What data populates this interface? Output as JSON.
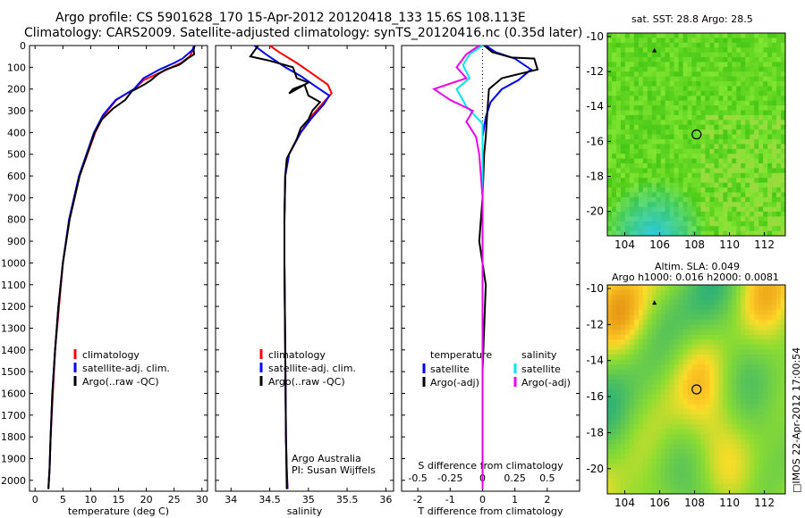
{
  "titles": {
    "line1": "Argo profile: CS 5901628_170 15-Apr-2012 20120418_133 15.6S 108.113E",
    "line2": "Climatology: CARS2009. Satellite-adjusted climatology: synTS_20120416.nc (0.35d later)"
  },
  "colors": {
    "climatology": "#ff0000",
    "satellite": "#0000ff",
    "argo": "#000000",
    "sal_satellite": "#00e5ee",
    "sal_argo": "#ee00ee"
  },
  "chart_data": [
    {
      "type": "line",
      "id": "temperature",
      "xlabel": "temperature (deg C)",
      "ylabel": "",
      "xlim": [
        -1,
        31
      ],
      "ylim": [
        2050,
        0
      ],
      "xticks": [
        0,
        5,
        10,
        15,
        20,
        25,
        30
      ],
      "yticks": [
        0,
        100,
        200,
        300,
        400,
        500,
        600,
        700,
        800,
        900,
        1000,
        1100,
        1200,
        1300,
        1400,
        1500,
        1600,
        1700,
        1800,
        1900,
        2000
      ],
      "legend": {
        "position": "lower-middle",
        "entries": [
          "climatology",
          "satellite-adj. clim.",
          "Argo(..raw -QC)"
        ]
      },
      "series": [
        {
          "name": "climatology",
          "color": "#ff0000",
          "x": [
            28.6,
            28.4,
            27.8,
            26.2,
            24.6,
            22.0,
            19.5,
            17.8,
            14.6,
            12.4,
            10.8,
            8.0,
            6.2,
            5.0,
            4.3,
            3.6,
            3.2,
            2.8,
            2.6,
            2.4
          ],
          "y": [
            0,
            20,
            50,
            80,
            100,
            130,
            160,
            200,
            250,
            320,
            400,
            600,
            800,
            1000,
            1200,
            1400,
            1600,
            1800,
            1950,
            2040
          ]
        },
        {
          "name": "satellite-adj. clim.",
          "color": "#0000ff",
          "x": [
            28.6,
            28.3,
            26.5,
            25.0,
            22.4,
            19.5,
            17.8,
            14.5,
            12.2,
            10.6,
            7.9,
            6.1,
            5.0,
            4.2,
            3.6,
            3.1,
            2.8,
            2.6,
            2.4
          ],
          "y": [
            0,
            20,
            60,
            80,
            110,
            150,
            200,
            250,
            320,
            400,
            600,
            800,
            1000,
            1200,
            1400,
            1600,
            1800,
            1950,
            2040
          ]
        },
        {
          "name": "Argo(..raw -QC)",
          "color": "#000000",
          "x": [
            28.7,
            28.5,
            28.6,
            27.4,
            26.4,
            25.8,
            23.5,
            22.2,
            20.8,
            19.6,
            17.4,
            16.2,
            14.0,
            12.0,
            10.7,
            8.0,
            6.2,
            5.0,
            4.2,
            3.6,
            3.1,
            2.8,
            2.6,
            2.4
          ],
          "y": [
            0,
            20,
            40,
            60,
            80,
            90,
            110,
            130,
            160,
            180,
            210,
            250,
            290,
            340,
            400,
            600,
            800,
            1000,
            1200,
            1400,
            1600,
            1800,
            1950,
            2040
          ]
        }
      ]
    },
    {
      "type": "line",
      "id": "salinity",
      "xlabel": "salinity",
      "ylabel": "",
      "xlim": [
        33.8,
        36.1
      ],
      "ylim": [
        2050,
        0
      ],
      "xticks": [
        34,
        34.5,
        35,
        35.5,
        36
      ],
      "legend": {
        "position": "lower-middle",
        "entries": [
          "climatology",
          "satellite-adj. clim.",
          "Argo(..raw -QC)"
        ]
      },
      "annotation": {
        "line1": "Argo Australia",
        "line2": "PI: Susan Wijffels"
      },
      "series": [
        {
          "name": "climatology",
          "color": "#ff0000",
          "x": [
            34.5,
            34.62,
            34.85,
            35.05,
            35.25,
            35.3,
            35.2,
            35.05,
            34.9,
            34.75,
            34.7,
            34.69,
            34.69,
            34.7,
            34.71,
            34.72,
            34.73
          ],
          "y": [
            0,
            30,
            80,
            130,
            180,
            220,
            260,
            320,
            400,
            500,
            600,
            800,
            1000,
            1400,
            1800,
            1950,
            2040
          ]
        },
        {
          "name": "satellite-adj. clim.",
          "color": "#0000ff",
          "x": [
            34.3,
            34.45,
            34.7,
            34.9,
            35.1,
            35.27,
            35.2,
            35.05,
            34.9,
            34.75,
            34.7,
            34.69,
            34.69,
            34.7,
            34.71,
            34.72,
            34.73
          ],
          "y": [
            0,
            40,
            100,
            140,
            190,
            230,
            270,
            330,
            400,
            500,
            600,
            800,
            1000,
            1400,
            1800,
            1950,
            2040
          ]
        },
        {
          "name": "Argo(..raw -QC)",
          "color": "#000000",
          "x": [
            34.35,
            34.25,
            34.5,
            34.8,
            34.85,
            35.0,
            34.75,
            34.8,
            34.95,
            35.0,
            35.15,
            35.05,
            35.0,
            34.9,
            34.85,
            34.72,
            34.7,
            34.69,
            34.69,
            34.7,
            34.71,
            34.72
          ],
          "y": [
            0,
            50,
            70,
            100,
            150,
            170,
            220,
            200,
            180,
            230,
            260,
            300,
            340,
            380,
            430,
            520,
            600,
            800,
            1000,
            1400,
            1800,
            2040
          ]
        }
      ]
    },
    {
      "type": "line",
      "id": "difference",
      "xlabel": "T difference from climatology",
      "xlabel2": "S difference from climatology",
      "xlim": [
        -2.5,
        3.0
      ],
      "ylim": [
        2050,
        0
      ],
      "xticks": [
        -2,
        -1,
        0,
        1,
        2
      ],
      "xticks_top": [
        -0.5,
        -0.25,
        0,
        0.25,
        0.5
      ],
      "xticks_top_labels": [
        "-0.5",
        "-0.25",
        "0",
        "0.25",
        "0.5"
      ],
      "legend": {
        "position": "lower",
        "left_head": "temperature",
        "right_head": "salinity",
        "entries": [
          "satellite",
          "Argo(-adj)",
          "satellite",
          "Argo(-adj)"
        ]
      },
      "series": [
        {
          "name": "satellite",
          "color": "#0000ff",
          "x": [
            0.1,
            0.4,
            1.0,
            1.5,
            1.1,
            0.6,
            0.25,
            0.1,
            0.0,
            0.0,
            0.0,
            0.0
          ],
          "y": [
            0,
            30,
            60,
            110,
            160,
            200,
            260,
            330,
            420,
            600,
            1000,
            2040
          ]
        },
        {
          "name": "Argo(-adj)",
          "color": "#000000",
          "x": [
            0.05,
            0.3,
            0.9,
            1.6,
            1.7,
            0.6,
            0.2,
            0.15,
            0.1,
            0.05,
            0.0,
            -0.1,
            0.1,
            0.0,
            0.0
          ],
          "y": [
            0,
            30,
            55,
            60,
            110,
            150,
            200,
            300,
            420,
            500,
            700,
            900,
            1100,
            1500,
            2040
          ]
        },
        {
          "name": "satellite",
          "color": "#00e5ee",
          "x": [
            0.0,
            -0.4,
            -0.6,
            -0.4,
            -0.8,
            -0.5,
            0.0,
            0.0,
            0.0,
            0.0
          ],
          "y": [
            0,
            40,
            90,
            150,
            200,
            280,
            360,
            500,
            1000,
            2040
          ]
        },
        {
          "name": "Argo(-adj)",
          "color": "#ee00ee",
          "x": [
            -0.1,
            -0.5,
            -0.8,
            -0.5,
            -1.5,
            -1.0,
            -0.3,
            -0.5,
            -0.2,
            -0.1,
            0.0,
            0.0
          ],
          "y": [
            0,
            40,
            100,
            150,
            200,
            250,
            300,
            350,
            420,
            500,
            700,
            2040
          ]
        }
      ]
    },
    {
      "type": "heatmap",
      "id": "sst-map",
      "title": "sat. SST: 28.8 Argo: 28.5",
      "xlim": [
        103,
        113.2
      ],
      "ylim": [
        -21.4,
        -9.8
      ],
      "xticks": [
        104,
        106,
        108,
        110,
        112
      ],
      "yticks": [
        -10,
        -12,
        -14,
        -16,
        -18,
        -20
      ],
      "marker": {
        "lon": 108.113,
        "lat": -15.6
      },
      "arrow": {
        "lon": 105.7,
        "lat": -10.8
      }
    },
    {
      "type": "heatmap",
      "id": "sla-map",
      "title": "Altim. SLA: 0.049",
      "subtitle": "Argo h1000: 0.016 h2000: 0.0081",
      "xlim": [
        103,
        113.2
      ],
      "ylim": [
        -21.4,
        -9.8
      ],
      "xticks": [
        104,
        106,
        108,
        110,
        112
      ],
      "yticks": [
        -10,
        -12,
        -14,
        -16,
        -18,
        -20
      ],
      "marker": {
        "lon": 108.113,
        "lat": -15.6
      },
      "arrow": {
        "lon": 105.7,
        "lat": -10.8
      }
    }
  ],
  "side_label": "□IMOS 22-Apr-2012 17:00:54"
}
